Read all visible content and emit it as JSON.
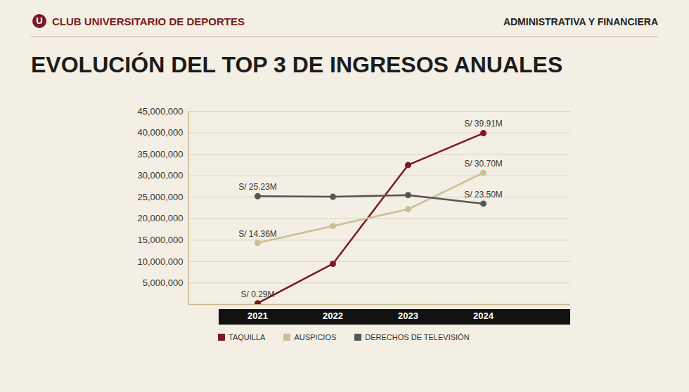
{
  "header": {
    "logo": "U",
    "brand": "CLUB UNIVERSITARIO DE DEPORTES",
    "section": "ADMINISTRATIVA Y FINANCIERA"
  },
  "chart_data": {
    "type": "line",
    "title": "EVOLUCIÓN DEL TOP 3 DE INGRESOS ANUALES",
    "categories": [
      "2021",
      "2022",
      "2023",
      "2024"
    ],
    "series": [
      {
        "name": "TAQUILLA",
        "color": "#7b1a22",
        "values": [
          290000,
          9500000,
          32500000,
          39910000
        ],
        "value_labels": [
          "S/ 0.29M",
          null,
          null,
          "S/ 39.91M"
        ]
      },
      {
        "name": "AUSPICIOS",
        "color": "#cbbf95",
        "values": [
          14360000,
          18300000,
          22200000,
          30700000
        ],
        "value_labels": [
          "S/ 14.36M",
          null,
          null,
          "S/ 30.70M"
        ]
      },
      {
        "name": "DERECHOS DE TELEVISIÓN",
        "color": "#555555",
        "values": [
          25230000,
          25100000,
          25500000,
          23500000
        ],
        "value_labels": [
          "S/ 25.23M",
          null,
          null,
          "S/ 23.50M"
        ]
      }
    ],
    "ylim": [
      0,
      45000000
    ],
    "yticks": [
      {
        "value": 5000000,
        "label": "5,000,000"
      },
      {
        "value": 10000000,
        "label": "10,000,000"
      },
      {
        "value": 15000000,
        "label": "15,000,000"
      },
      {
        "value": 20000000,
        "label": "20,000,000"
      },
      {
        "value": 25000000,
        "label": "25,000,000"
      },
      {
        "value": 30000000,
        "label": "30,000,000"
      },
      {
        "value": 35000000,
        "label": "35,000,000"
      },
      {
        "value": 40000000,
        "label": "40,000,000"
      },
      {
        "value": 45000000,
        "label": "45,000,000"
      }
    ],
    "grid": true,
    "legend": "bottom",
    "data_labels": true,
    "marker": "circle"
  }
}
